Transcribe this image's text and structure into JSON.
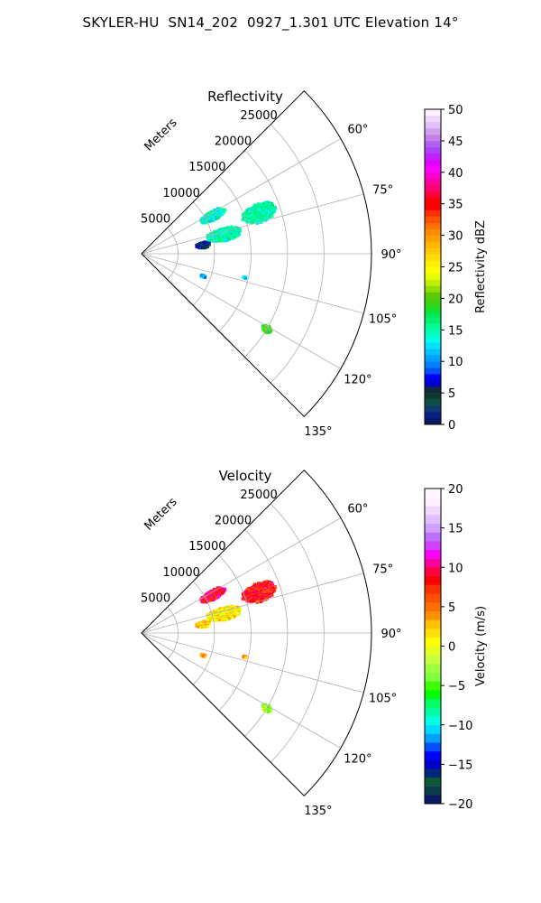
{
  "page": {
    "title": "SKYLER-HU  SN14_202  0927_1.301 UTC Elevation 14°"
  },
  "chart_data": [
    {
      "type": "heatmap",
      "projection": "polar-sector",
      "title": "Reflectivity",
      "range_label": "Meters",
      "range_ticks": [
        5000,
        10000,
        15000,
        20000,
        25000
      ],
      "range_max": 31500,
      "azimuth_ticks": [
        60,
        75,
        90,
        105,
        120,
        135
      ],
      "azimuth_grid": [
        60,
        75,
        90,
        105,
        120,
        135
      ],
      "azimuth_range": [
        45,
        135
      ],
      "grid": true,
      "colorbar": {
        "label": "Reflectivity dBZ",
        "min": 0,
        "max": 50,
        "ticks": [
          0,
          5,
          10,
          15,
          20,
          25,
          30,
          35,
          40,
          45,
          50
        ],
        "colormap": "pyart_NWSRef"
      },
      "echoes": [
        {
          "azimuth": 62,
          "range": 11000,
          "az_width": 7,
          "range_width": 4000,
          "value": 14
        },
        {
          "azimuth": 77,
          "range": 11500,
          "az_width": 9,
          "range_width": 5000,
          "value": 15
        },
        {
          "azimuth": 71,
          "range": 17000,
          "az_width": 9,
          "range_width": 5000,
          "value": 15
        },
        {
          "azimuth": 82,
          "range": 8500,
          "az_width": 6,
          "range_width": 2000,
          "value": 5
        },
        {
          "azimuth": 121,
          "range": 20000,
          "az_width": 3,
          "range_width": 1500,
          "value": 19
        },
        {
          "azimuth": 110,
          "range": 9000,
          "az_width": 2,
          "range_width": 800,
          "value": 11
        },
        {
          "azimuth": 103,
          "range": 14500,
          "az_width": 1,
          "range_width": 600,
          "value": 13
        }
      ]
    },
    {
      "type": "heatmap",
      "projection": "polar-sector",
      "title": "Velocity",
      "range_label": "Meters",
      "range_ticks": [
        5000,
        10000,
        15000,
        20000,
        25000
      ],
      "range_max": 31500,
      "azimuth_ticks": [
        60,
        75,
        90,
        105,
        120,
        135
      ],
      "azimuth_grid": [
        60,
        75,
        90,
        105,
        120,
        135
      ],
      "azimuth_range": [
        45,
        135
      ],
      "grid": true,
      "colorbar": {
        "label": "Velocity (m/s)",
        "min": -20,
        "max": 20,
        "ticks": [
          -20,
          -15,
          -10,
          -5,
          0,
          5,
          10,
          15,
          20
        ],
        "colormap": "pyart_BuDRd18"
      },
      "echoes": [
        {
          "azimuth": 62,
          "range": 11000,
          "az_width": 7,
          "range_width": 4000,
          "value": 9
        },
        {
          "azimuth": 77,
          "range": 11500,
          "az_width": 9,
          "range_width": 5000,
          "value": 1
        },
        {
          "azimuth": 71,
          "range": 17000,
          "az_width": 9,
          "range_width": 5000,
          "value": 8
        },
        {
          "azimuth": 82,
          "range": 8500,
          "az_width": 6,
          "range_width": 2000,
          "value": 2
        },
        {
          "azimuth": 121,
          "range": 20000,
          "az_width": 3,
          "range_width": 1500,
          "value": -3
        },
        {
          "azimuth": 110,
          "range": 9000,
          "az_width": 2,
          "range_width": 800,
          "value": 4
        },
        {
          "azimuth": 103,
          "range": 14500,
          "az_width": 1,
          "range_width": 600,
          "value": 4
        }
      ]
    }
  ]
}
